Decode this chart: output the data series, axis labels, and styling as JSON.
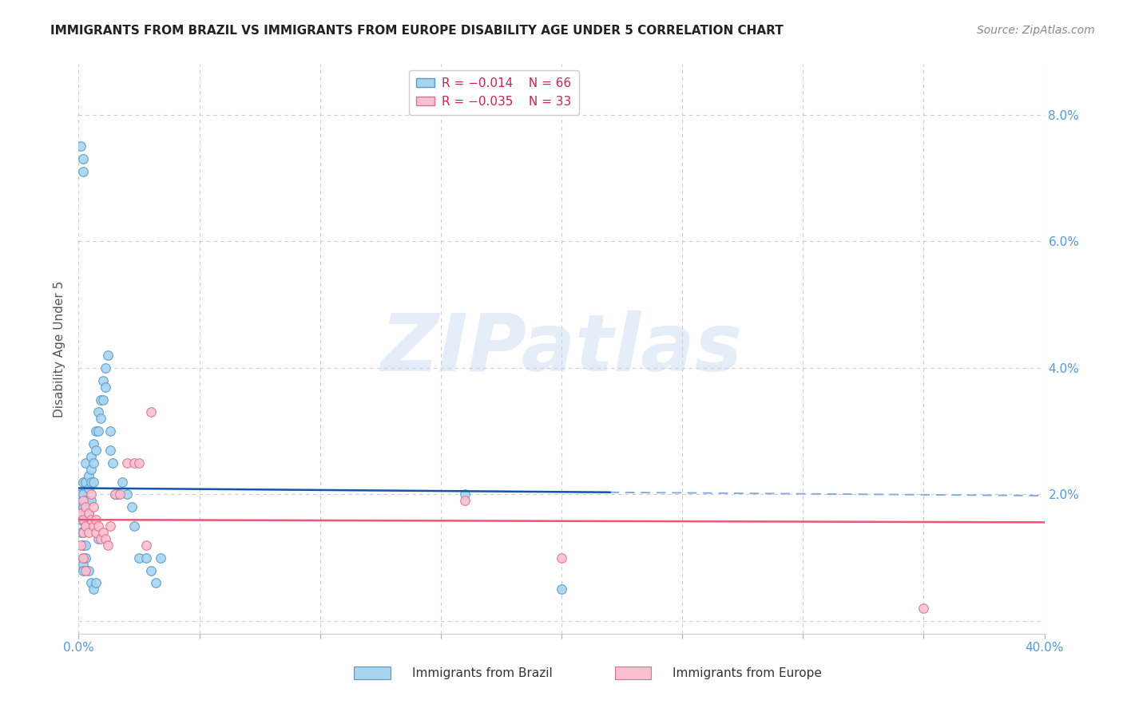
{
  "title": "IMMIGRANTS FROM BRAZIL VS IMMIGRANTS FROM EUROPE DISABILITY AGE UNDER 5 CORRELATION CHART",
  "source": "Source: ZipAtlas.com",
  "ylabel": "Disability Age Under 5",
  "xlim": [
    0.0,
    0.4
  ],
  "ylim": [
    -0.002,
    0.088
  ],
  "xticks": [
    0.0,
    0.05,
    0.1,
    0.15,
    0.2,
    0.25,
    0.3,
    0.35,
    0.4
  ],
  "xtick_labels": [
    "0.0%",
    "",
    "",
    "",
    "",
    "",
    "",
    "",
    "40.0%"
  ],
  "yticks": [
    0.0,
    0.02,
    0.04,
    0.06,
    0.08
  ],
  "ytick_labels_right": [
    "",
    "2.0%",
    "4.0%",
    "6.0%",
    "8.0%"
  ],
  "grid_color": "#cccccc",
  "background_color": "#ffffff",
  "brazil_x": [
    0.001,
    0.001,
    0.001,
    0.001,
    0.002,
    0.002,
    0.002,
    0.002,
    0.002,
    0.002,
    0.002,
    0.003,
    0.003,
    0.003,
    0.003,
    0.003,
    0.004,
    0.004,
    0.004,
    0.004,
    0.005,
    0.005,
    0.005,
    0.005,
    0.006,
    0.006,
    0.006,
    0.007,
    0.007,
    0.008,
    0.008,
    0.009,
    0.009,
    0.01,
    0.01,
    0.011,
    0.011,
    0.012,
    0.013,
    0.013,
    0.014,
    0.015,
    0.016,
    0.018,
    0.02,
    0.022,
    0.023,
    0.025,
    0.028,
    0.03,
    0.032,
    0.034,
    0.16,
    0.2,
    0.001,
    0.002,
    0.002,
    0.002,
    0.002,
    0.003,
    0.003,
    0.004,
    0.005,
    0.006,
    0.007,
    0.008
  ],
  "brazil_y": [
    0.02,
    0.018,
    0.016,
    0.014,
    0.022,
    0.02,
    0.018,
    0.016,
    0.014,
    0.012,
    0.01,
    0.025,
    0.022,
    0.019,
    0.017,
    0.015,
    0.023,
    0.021,
    0.019,
    0.017,
    0.026,
    0.024,
    0.022,
    0.019,
    0.028,
    0.025,
    0.022,
    0.03,
    0.027,
    0.033,
    0.03,
    0.035,
    0.032,
    0.038,
    0.035,
    0.04,
    0.037,
    0.042,
    0.03,
    0.027,
    0.025,
    0.02,
    0.02,
    0.022,
    0.02,
    0.018,
    0.015,
    0.01,
    0.01,
    0.008,
    0.006,
    0.01,
    0.02,
    0.005,
    0.075,
    0.073,
    0.071,
    0.009,
    0.008,
    0.012,
    0.01,
    0.008,
    0.006,
    0.005,
    0.006,
    0.013
  ],
  "europe_x": [
    0.001,
    0.002,
    0.002,
    0.002,
    0.003,
    0.003,
    0.004,
    0.004,
    0.005,
    0.005,
    0.006,
    0.006,
    0.007,
    0.007,
    0.008,
    0.009,
    0.01,
    0.011,
    0.012,
    0.013,
    0.015,
    0.017,
    0.02,
    0.023,
    0.025,
    0.028,
    0.03,
    0.16,
    0.2,
    0.35,
    0.001,
    0.002,
    0.003
  ],
  "europe_y": [
    0.017,
    0.019,
    0.016,
    0.014,
    0.018,
    0.015,
    0.017,
    0.014,
    0.02,
    0.016,
    0.018,
    0.015,
    0.016,
    0.014,
    0.015,
    0.013,
    0.014,
    0.013,
    0.012,
    0.015,
    0.02,
    0.02,
    0.025,
    0.025,
    0.025,
    0.012,
    0.033,
    0.019,
    0.01,
    0.002,
    0.012,
    0.01,
    0.008
  ],
  "brazil_marker_face": "#a8d4f0",
  "brazil_marker_edge": "#5599cc",
  "brazil_trend_color": "#1155aa",
  "europe_marker_face": "#f9c0d0",
  "europe_marker_edge": "#dd7090",
  "europe_trend_color": "#ee5577",
  "dashed_line_color": "#88aade",
  "legend_R1": "R = −0.014",
  "legend_N1": "N = 66",
  "legend_R2": "R = −0.035",
  "legend_N2": "N = 33",
  "legend_label1": "Immigrants from Brazil",
  "legend_label2": "Immigrants from Europe",
  "watermark": "ZIPatlas",
  "title_fontsize": 11,
  "axis_label_fontsize": 11,
  "tick_fontsize": 11,
  "legend_fontsize": 11,
  "source_fontsize": 10,
  "marker_size": 70,
  "axis_tick_color": "#5599dd",
  "ylabel_color": "#555555"
}
